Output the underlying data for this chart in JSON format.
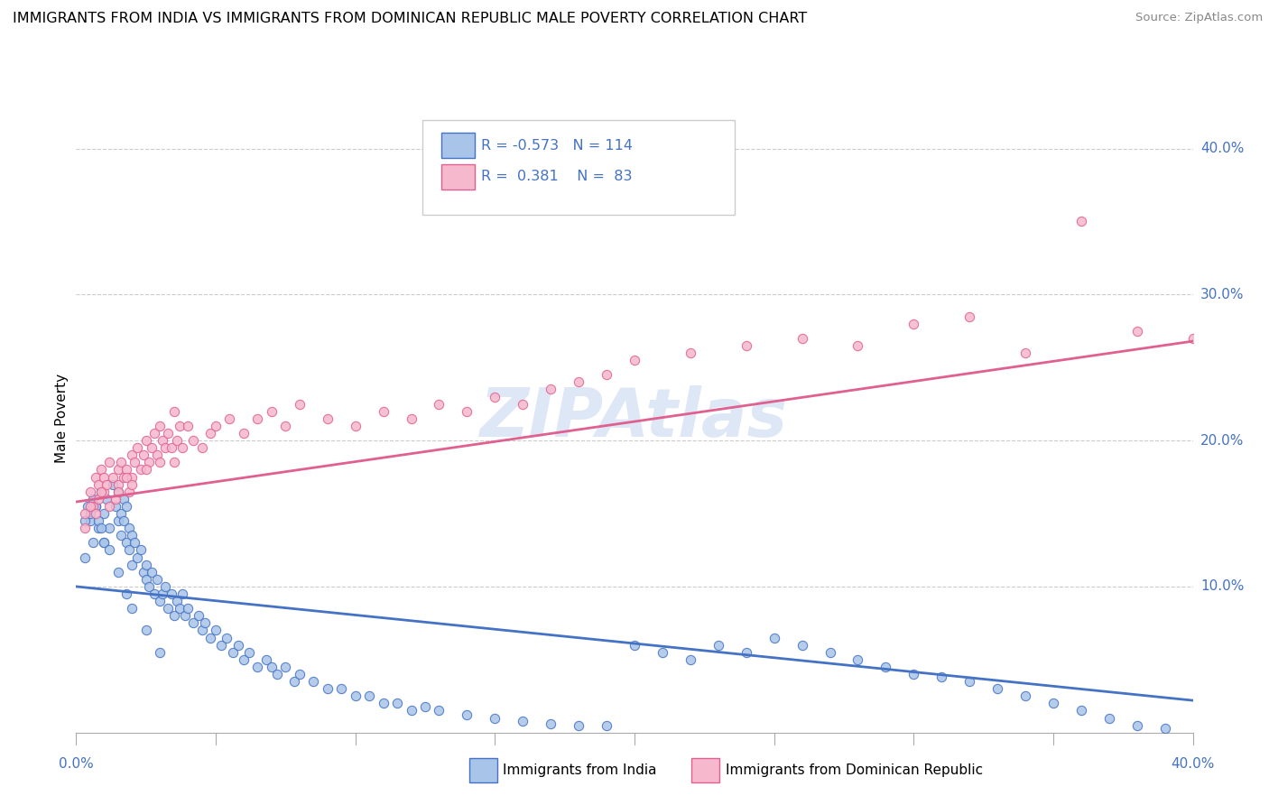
{
  "title": "IMMIGRANTS FROM INDIA VS IMMIGRANTS FROM DOMINICAN REPUBLIC MALE POVERTY CORRELATION CHART",
  "source": "Source: ZipAtlas.com",
  "ylabel": "Male Poverty",
  "legend1_label": "Immigrants from India",
  "legend2_label": "Immigrants from Dominican Republic",
  "r1": "-0.573",
  "n1": "114",
  "r2": "0.381",
  "n2": "83",
  "color_india": "#a8c4e8",
  "color_dr": "#f5b8cc",
  "color_india_line": "#4472c4",
  "color_dr_line": "#e06090",
  "color_text_blue": "#4472c4",
  "watermark_color": "#c8d8f0",
  "xlim": [
    0.0,
    0.4
  ],
  "ylim": [
    0.0,
    0.43
  ],
  "india_scatter_x": [
    0.003,
    0.005,
    0.006,
    0.007,
    0.008,
    0.009,
    0.01,
    0.01,
    0.011,
    0.012,
    0.013,
    0.014,
    0.015,
    0.015,
    0.016,
    0.016,
    0.017,
    0.017,
    0.018,
    0.018,
    0.019,
    0.019,
    0.02,
    0.02,
    0.021,
    0.022,
    0.023,
    0.024,
    0.025,
    0.025,
    0.026,
    0.027,
    0.028,
    0.029,
    0.03,
    0.031,
    0.032,
    0.033,
    0.034,
    0.035,
    0.036,
    0.037,
    0.038,
    0.039,
    0.04,
    0.042,
    0.044,
    0.045,
    0.046,
    0.048,
    0.05,
    0.052,
    0.054,
    0.056,
    0.058,
    0.06,
    0.062,
    0.065,
    0.068,
    0.07,
    0.072,
    0.075,
    0.078,
    0.08,
    0.085,
    0.09,
    0.095,
    0.1,
    0.105,
    0.11,
    0.115,
    0.12,
    0.125,
    0.13,
    0.14,
    0.15,
    0.16,
    0.17,
    0.18,
    0.19,
    0.2,
    0.21,
    0.22,
    0.23,
    0.24,
    0.25,
    0.26,
    0.27,
    0.28,
    0.29,
    0.3,
    0.31,
    0.32,
    0.33,
    0.34,
    0.35,
    0.36,
    0.37,
    0.38,
    0.39,
    0.003,
    0.004,
    0.005,
    0.006,
    0.007,
    0.008,
    0.009,
    0.01,
    0.012,
    0.015,
    0.018,
    0.02,
    0.025,
    0.03
  ],
  "india_scatter_y": [
    0.12,
    0.145,
    0.13,
    0.155,
    0.14,
    0.165,
    0.15,
    0.13,
    0.16,
    0.14,
    0.17,
    0.155,
    0.145,
    0.165,
    0.15,
    0.135,
    0.16,
    0.145,
    0.155,
    0.13,
    0.14,
    0.125,
    0.135,
    0.115,
    0.13,
    0.12,
    0.125,
    0.11,
    0.115,
    0.105,
    0.1,
    0.11,
    0.095,
    0.105,
    0.09,
    0.095,
    0.1,
    0.085,
    0.095,
    0.08,
    0.09,
    0.085,
    0.095,
    0.08,
    0.085,
    0.075,
    0.08,
    0.07,
    0.075,
    0.065,
    0.07,
    0.06,
    0.065,
    0.055,
    0.06,
    0.05,
    0.055,
    0.045,
    0.05,
    0.045,
    0.04,
    0.045,
    0.035,
    0.04,
    0.035,
    0.03,
    0.03,
    0.025,
    0.025,
    0.02,
    0.02,
    0.015,
    0.018,
    0.015,
    0.012,
    0.01,
    0.008,
    0.006,
    0.005,
    0.005,
    0.06,
    0.055,
    0.05,
    0.06,
    0.055,
    0.065,
    0.06,
    0.055,
    0.05,
    0.045,
    0.04,
    0.038,
    0.035,
    0.03,
    0.025,
    0.02,
    0.015,
    0.01,
    0.005,
    0.003,
    0.145,
    0.155,
    0.15,
    0.16,
    0.155,
    0.145,
    0.14,
    0.13,
    0.125,
    0.11,
    0.095,
    0.085,
    0.07,
    0.055
  ],
  "dr_scatter_x": [
    0.003,
    0.005,
    0.006,
    0.007,
    0.008,
    0.008,
    0.009,
    0.01,
    0.01,
    0.011,
    0.012,
    0.013,
    0.014,
    0.015,
    0.015,
    0.016,
    0.017,
    0.018,
    0.019,
    0.02,
    0.02,
    0.021,
    0.022,
    0.023,
    0.024,
    0.025,
    0.026,
    0.027,
    0.028,
    0.029,
    0.03,
    0.031,
    0.032,
    0.033,
    0.034,
    0.035,
    0.036,
    0.037,
    0.038,
    0.04,
    0.042,
    0.045,
    0.048,
    0.05,
    0.055,
    0.06,
    0.065,
    0.07,
    0.075,
    0.08,
    0.09,
    0.1,
    0.11,
    0.12,
    0.13,
    0.14,
    0.15,
    0.16,
    0.17,
    0.18,
    0.19,
    0.2,
    0.22,
    0.24,
    0.26,
    0.28,
    0.3,
    0.32,
    0.34,
    0.36,
    0.38,
    0.4,
    0.003,
    0.005,
    0.007,
    0.009,
    0.012,
    0.015,
    0.018,
    0.02,
    0.025,
    0.03,
    0.035
  ],
  "dr_scatter_y": [
    0.15,
    0.165,
    0.155,
    0.175,
    0.16,
    0.17,
    0.18,
    0.165,
    0.175,
    0.17,
    0.185,
    0.175,
    0.16,
    0.18,
    0.17,
    0.185,
    0.175,
    0.18,
    0.165,
    0.19,
    0.175,
    0.185,
    0.195,
    0.18,
    0.19,
    0.2,
    0.185,
    0.195,
    0.205,
    0.19,
    0.185,
    0.2,
    0.195,
    0.205,
    0.195,
    0.185,
    0.2,
    0.21,
    0.195,
    0.21,
    0.2,
    0.195,
    0.205,
    0.21,
    0.215,
    0.205,
    0.215,
    0.22,
    0.21,
    0.225,
    0.215,
    0.21,
    0.22,
    0.215,
    0.225,
    0.22,
    0.23,
    0.225,
    0.235,
    0.24,
    0.245,
    0.255,
    0.26,
    0.265,
    0.27,
    0.265,
    0.28,
    0.285,
    0.26,
    0.35,
    0.275,
    0.27,
    0.14,
    0.155,
    0.15,
    0.165,
    0.155,
    0.165,
    0.175,
    0.17,
    0.18,
    0.21,
    0.22
  ],
  "india_trend_x": [
    0.0,
    0.4
  ],
  "india_trend_y": [
    0.1,
    0.022
  ],
  "dr_trend_x": [
    0.0,
    0.4
  ],
  "dr_trend_y": [
    0.158,
    0.268
  ]
}
